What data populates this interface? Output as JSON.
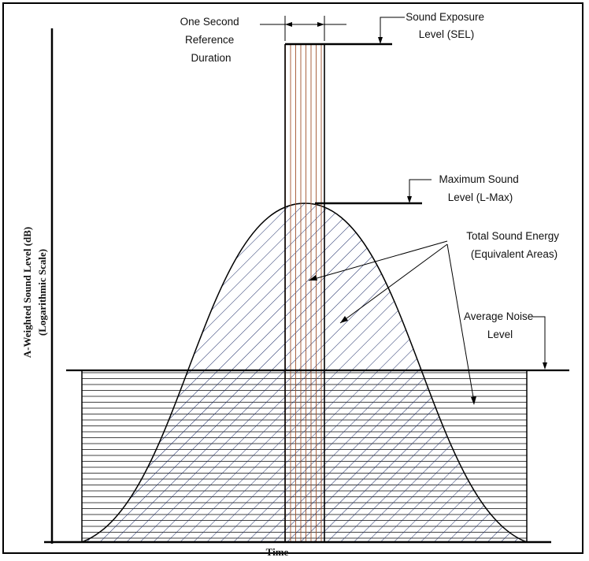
{
  "diagram": {
    "y_axis": {
      "label": "A-Weighted Sound Level (dB)",
      "sublabel": "(Logarithmic Scale)"
    },
    "x_axis": {
      "label": "Time"
    },
    "annotations": {
      "reference_duration": [
        "One Second",
        "Reference",
        "Duration"
      ],
      "sel": [
        "Sound  Exposure",
        "Level (SEL)"
      ],
      "lmax": [
        "Maximum Sound",
        "Level (L-Max)"
      ],
      "energy": [
        "Total Sound Energy",
        "(Equivalent Areas)"
      ],
      "average": [
        "Average Noise",
        "Level"
      ]
    }
  }
}
